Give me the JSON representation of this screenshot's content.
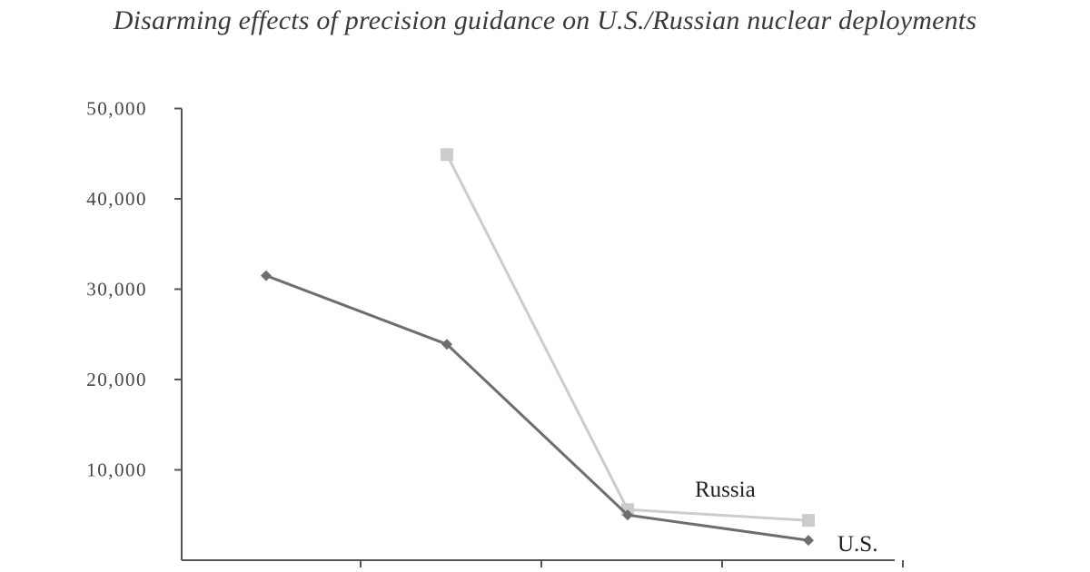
{
  "chart_data": {
    "type": "line",
    "title": "Disarming effects of precision guidance on U.S./Russian nuclear deployments",
    "xlabel": "",
    "ylabel": "",
    "ylim": [
      0,
      50000
    ],
    "yticks": [
      10000,
      20000,
      30000,
      40000,
      50000
    ],
    "ytick_labels": [
      "10,000",
      "20,000",
      "30,000",
      "40,000",
      "50,000"
    ],
    "x_positions": [
      1,
      2,
      3,
      4
    ],
    "series": [
      {
        "name": "U.S.",
        "values": [
          31500,
          23900,
          5000,
          2200
        ],
        "color": "#6e6e6e",
        "marker": "diamond"
      },
      {
        "name": "Russia",
        "values": [
          null,
          44900,
          5600,
          4400
        ],
        "color": "#cccccc",
        "marker": "square"
      }
    ],
    "grid": false,
    "legend": "inline labels at right end of lines"
  }
}
